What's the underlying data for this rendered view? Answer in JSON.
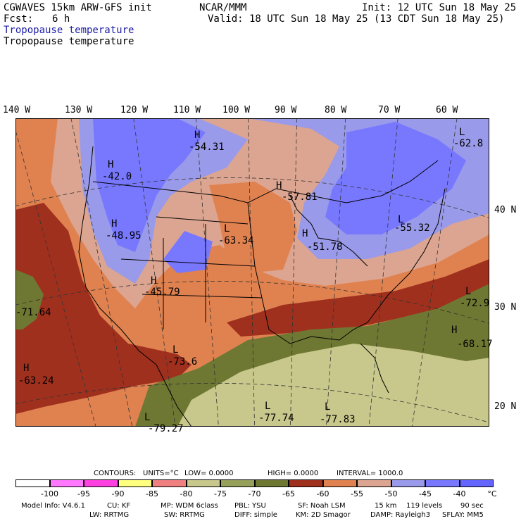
{
  "header": {
    "model": "CGWAVES 15km ARW-GFS init",
    "fcst_label": "Fcst:",
    "fcst_value": "6 h",
    "org": "NCAR/MMM",
    "init": "Init: 12 UTC Sun 18 May 25",
    "valid": "Valid: 18 UTC Sun 18 May 25 (13 CDT Sun 18 May 25)",
    "field_title_1": "Tropopause temperature",
    "field_title_2": "Tropopause temperature"
  },
  "axes": {
    "longitudes": [
      "140 W",
      "130 W",
      "120 W",
      "110 W",
      "100 W",
      "90 W",
      "80 W",
      "70 W",
      "60 W"
    ],
    "latitudes": [
      "40 N",
      "30 N",
      "20 N"
    ]
  },
  "map_labels": [
    {
      "id": "h1",
      "hl": "H",
      "value": "-54.31"
    },
    {
      "id": "h2",
      "hl": "H",
      "value": "-42.0"
    },
    {
      "id": "h3",
      "hl": "H",
      "value": "-48.95"
    },
    {
      "id": "h4",
      "hl": "H",
      "value": "-45.79"
    },
    {
      "id": "l1",
      "hl": "L",
      "value": "-63.34"
    },
    {
      "id": "h5",
      "hl": "H",
      "value": "-51.78"
    },
    {
      "id": "h6",
      "hl": "H",
      "value": "-57.81"
    },
    {
      "id": "l2",
      "hl": "L",
      "value": "-55.32"
    },
    {
      "id": "l3",
      "hl": "L",
      "value": "-62.8"
    },
    {
      "id": "l4",
      "hl": "L",
      "value": "-72.9"
    },
    {
      "id": "h7",
      "hl": "H",
      "value": "-68.17"
    },
    {
      "id": "h8",
      "hl": "H",
      "value": "-63.24"
    },
    {
      "id": "l5",
      "hl": "L",
      "value": "-73.6"
    },
    {
      "id": "l6",
      "hl": "L",
      "value": "-77.74"
    },
    {
      "id": "l7",
      "hl": "L",
      "value": "-77.83"
    },
    {
      "id": "l8",
      "hl": "L",
      "value": "-79.27"
    },
    {
      "id": "v1",
      "hl": "",
      "value": "-71.64"
    }
  ],
  "contours": {
    "label": "CONTOURS:",
    "units": "UNITS=°C",
    "low": "LOW= 0.0000",
    "high": "HIGH= 0.0000",
    "interval": "INTERVAL= 1000.0"
  },
  "colorbar": {
    "colors": [
      "#ffffff",
      "#ff78ff",
      "#ff40e0",
      "#ffff80",
      "#f08080",
      "#c8c88c",
      "#96a05a",
      "#6e7832",
      "#a0301e",
      "#e08250",
      "#dca591",
      "#9a9aea",
      "#7878ff",
      "#6464ff"
    ],
    "labels": [
      "-100",
      "-95",
      "-90",
      "-85",
      "-80",
      "-75",
      "-70",
      "-65",
      "-60",
      "-55",
      "-50",
      "-45",
      "-40",
      "°C"
    ]
  },
  "footer": {
    "line1": [
      "Model Info: V4.6.1",
      "CU: KF",
      "MP: WDM 6class",
      "PBL: YSU",
      "SF: Noah LSM",
      "15 km",
      "119 levels",
      "90 sec"
    ],
    "line2": [
      "LW: RRTMG",
      "SW: RRTMG",
      "DIFF: simple",
      "KM: 2D Smagor",
      "DAMP: Rayleigh3",
      "SFLAY: MM5"
    ]
  }
}
